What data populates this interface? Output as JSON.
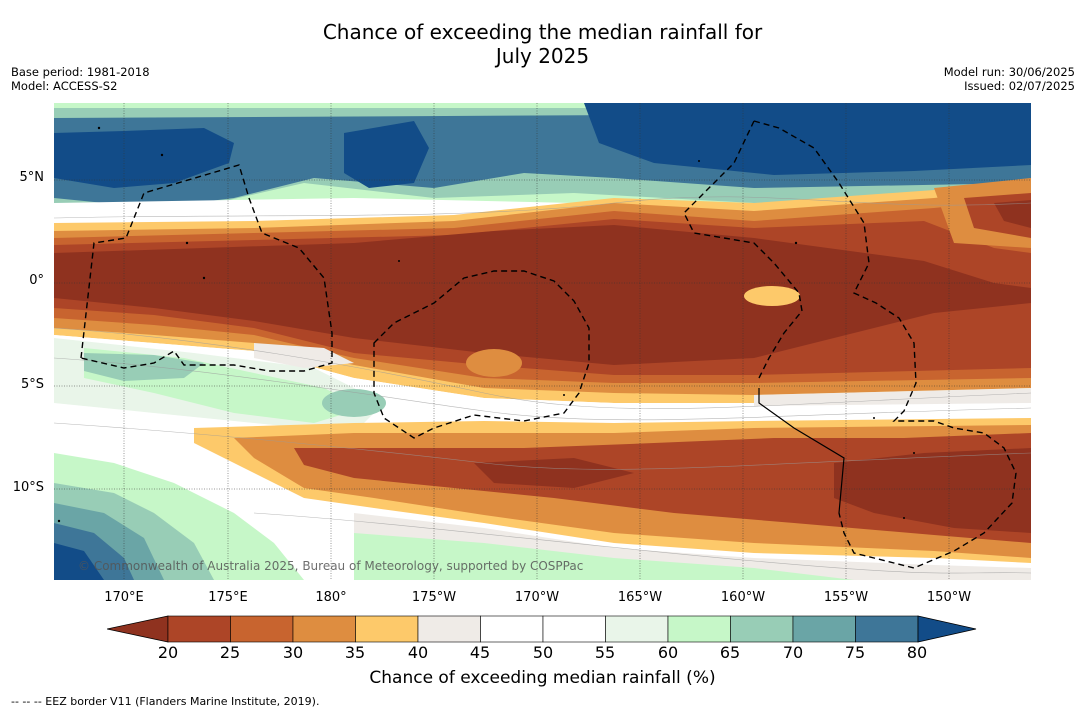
{
  "title_line1": "Chance of exceeding the median rainfall for",
  "title_line2": "July 2025",
  "meta_left": {
    "base_period": "Base period: 1981-2018",
    "model": "Model: ACCESS-S2"
  },
  "meta_right": {
    "model_run": "Model run: 30/06/2025",
    "issued": "Issued: 02/07/2025"
  },
  "lat_labels": [
    "5°N",
    "0°",
    "5°S",
    "10°S"
  ],
  "lon_labels": [
    "170°E",
    "175°E",
    "180°",
    "175°W",
    "170°W",
    "165°W",
    "160°W",
    "155°W",
    "150°W"
  ],
  "credit": "© Commonwealth of Australia 2025, Bureau of Meteorology, supported by COSPPac",
  "colorbar": {
    "ticks": [
      "20",
      "25",
      "30",
      "35",
      "40",
      "45",
      "50",
      "55",
      "60",
      "65",
      "70",
      "75",
      "80"
    ],
    "colors": [
      "#8f321f",
      "#ad4527",
      "#c8642f",
      "#de8d40",
      "#fdc96a",
      "#efebe7",
      "#ffffff",
      "#ffffff",
      "#e9f5e9",
      "#c6f7c8",
      "#98cdb6",
      "#6aa5a6",
      "#3e7698",
      "#124c88"
    ],
    "label": "Chance of exceeding median rainfall (%)"
  },
  "footer": "--  --  -- EEZ border V11 (Flanders Marine Institute, 2019)."
}
